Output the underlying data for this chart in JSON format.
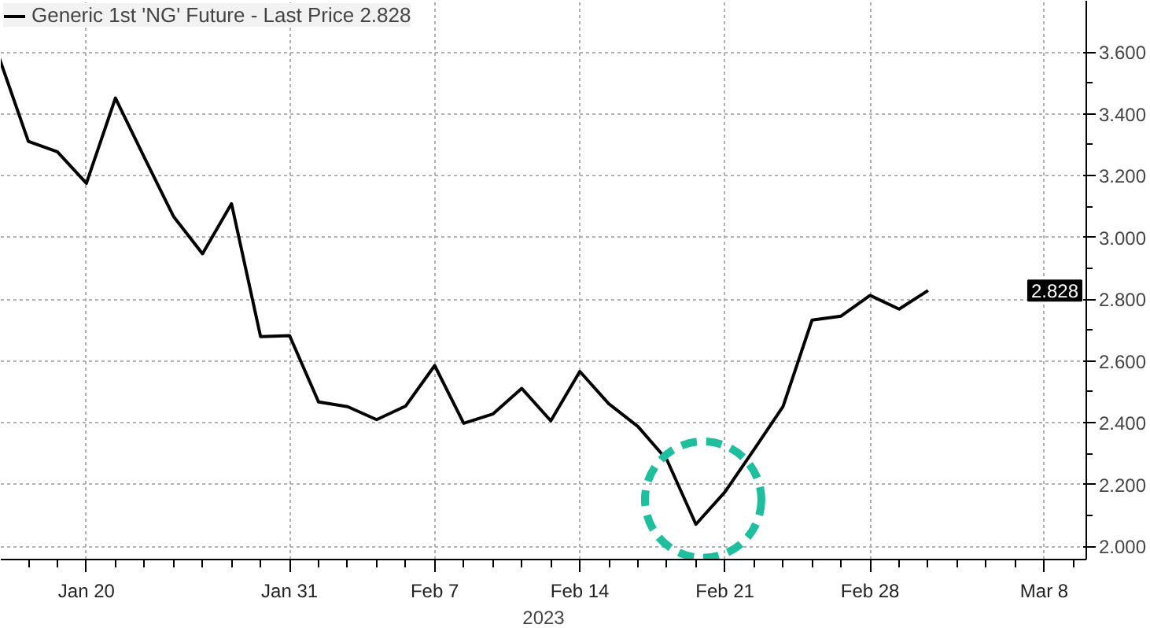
{
  "chart_data": {
    "type": "line",
    "categories": [
      null,
      null,
      null,
      "Jan 20",
      null,
      null,
      null,
      null,
      null,
      null,
      "Jan 31",
      null,
      null,
      null,
      null,
      "Feb 7",
      null,
      null,
      null,
      null,
      "Feb 14",
      null,
      null,
      null,
      null,
      "Feb 21",
      null,
      null,
      null,
      null,
      "Feb 28",
      null,
      null,
      null,
      null,
      null,
      "Mar 8",
      null
    ],
    "series": [
      {
        "name": "Generic 1st 'NG' Future - Last Price 2.828",
        "color": "#000000",
        "values": [
          3.58,
          3.311,
          3.277,
          3.175,
          3.451,
          3.258,
          3.068,
          2.947,
          3.109,
          2.679,
          2.682,
          2.467,
          2.452,
          2.41,
          2.454,
          2.585,
          2.398,
          2.428,
          2.511,
          2.406,
          2.566,
          2.461,
          2.388,
          2.28,
          2.071,
          2.176,
          2.313,
          2.452,
          2.732,
          2.745,
          2.812,
          2.768,
          2.828,
          null,
          null,
          null,
          null,
          null
        ]
      }
    ],
    "xlabel": "2023",
    "ylim": [
      1.957,
      3.766
    ],
    "yticks": [
      {
        "value": 2.0,
        "label": "2.000"
      },
      {
        "value": 2.2,
        "label": "2.200"
      },
      {
        "value": 2.4,
        "label": "2.400"
      },
      {
        "value": 2.6,
        "label": "2.600"
      },
      {
        "value": 2.8,
        "label": "2.800"
      },
      {
        "value": 3.0,
        "label": "3.000"
      },
      {
        "value": 3.2,
        "label": "3.200"
      },
      {
        "value": 3.4,
        "label": "3.400"
      },
      {
        "value": 3.6,
        "label": "3.600"
      }
    ],
    "annotations": [
      {
        "text": "2.828",
        "y": 2.828
      }
    ],
    "grid": true,
    "legend": "top left",
    "marker": "none",
    "line_style": "solid"
  }
}
